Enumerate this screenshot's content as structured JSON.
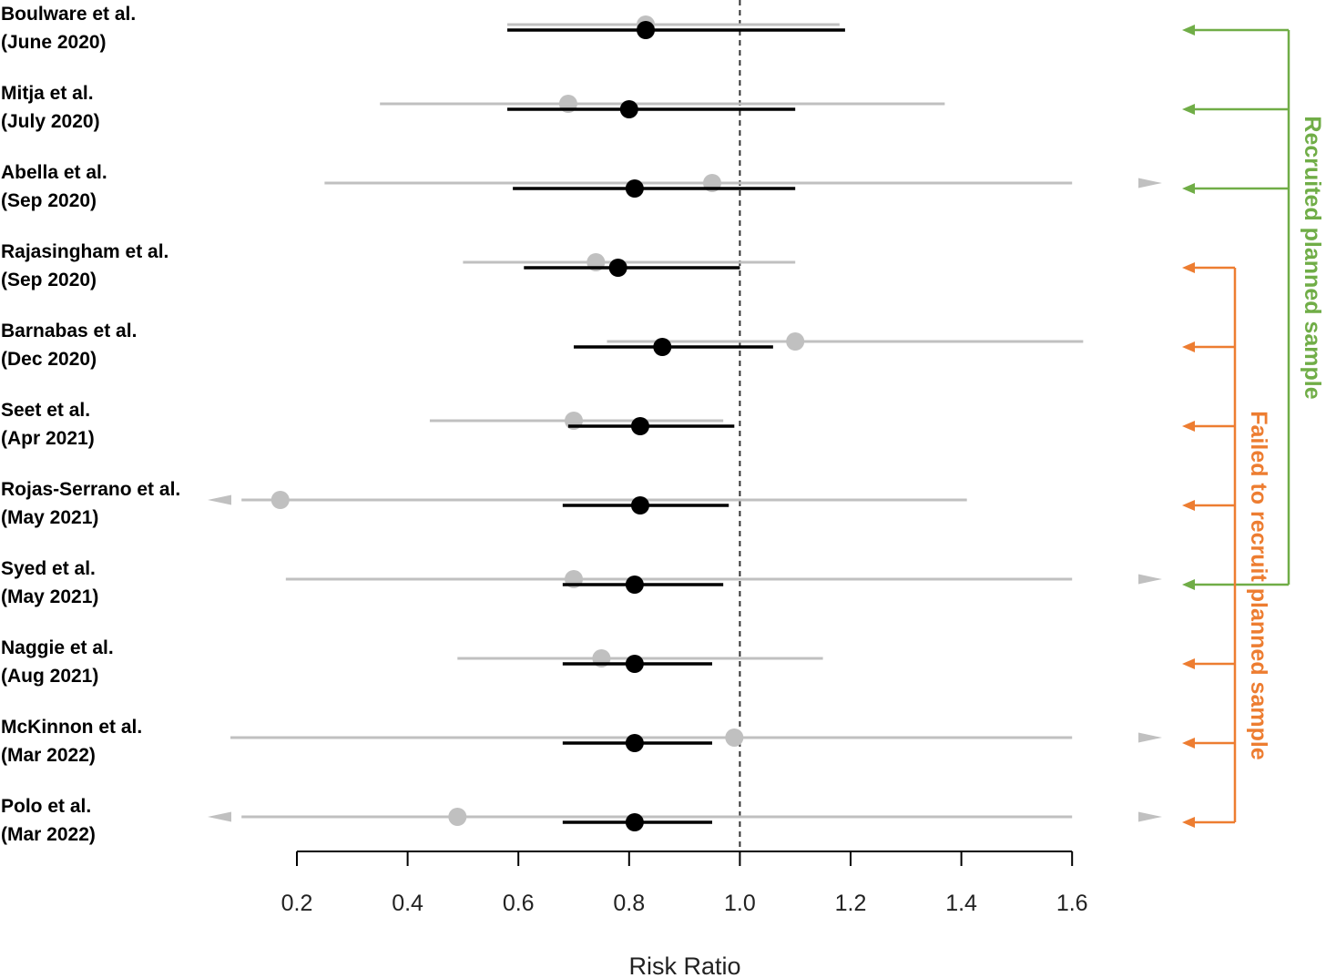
{
  "colors": {
    "posterior": "#000000",
    "trial": "#c0c0c0",
    "recruited": "#70ad47",
    "failed": "#ed7d31",
    "reference_line": "#333333"
  },
  "chart_data": {
    "type": "scatter",
    "xlabel": "Risk Ratio",
    "xlim": [
      0.2,
      1.6
    ],
    "xticks": [
      0.2,
      0.4,
      0.6,
      0.8,
      1.0,
      1.2,
      1.4,
      1.6
    ],
    "xtick_labels": [
      "0.2",
      "0.4",
      "0.6",
      "0.8",
      "1.0",
      "1.2",
      "1.4",
      "1.6"
    ],
    "reference_line": 1.0,
    "studies": [
      {
        "name": "Boulware et al.",
        "date": "(June 2020)",
        "group": "recruited",
        "trial": {
          "est": 0.83,
          "lo": 0.58,
          "hi": 1.18,
          "arrow_lo": false,
          "arrow_hi": false
        },
        "posterior": {
          "est": 0.83,
          "lo": 0.58,
          "hi": 1.19
        }
      },
      {
        "name": "Mitja et al.",
        "date": "(July 2020)",
        "group": "recruited",
        "trial": {
          "est": 0.69,
          "lo": 0.35,
          "hi": 1.37,
          "arrow_lo": false,
          "arrow_hi": false
        },
        "posterior": {
          "est": 0.8,
          "lo": 0.58,
          "hi": 1.1
        }
      },
      {
        "name": "Abella et al.",
        "date": "(Sep 2020)",
        "group": "recruited",
        "trial": {
          "est": 0.95,
          "lo": 0.25,
          "hi": 1.6,
          "arrow_lo": false,
          "arrow_hi": true
        },
        "posterior": {
          "est": 0.81,
          "lo": 0.59,
          "hi": 1.1
        }
      },
      {
        "name": "Rajasingham et al.",
        "date": "(Sep 2020)",
        "group": "failed",
        "trial": {
          "est": 0.74,
          "lo": 0.5,
          "hi": 1.1,
          "arrow_lo": false,
          "arrow_hi": false
        },
        "posterior": {
          "est": 0.78,
          "lo": 0.61,
          "hi": 1.0
        }
      },
      {
        "name": "Barnabas et al.",
        "date": "(Dec 2020)",
        "group": "failed",
        "trial": {
          "est": 1.1,
          "lo": 0.76,
          "hi": 1.62,
          "arrow_lo": false,
          "arrow_hi": false
        },
        "posterior": {
          "est": 0.86,
          "lo": 0.7,
          "hi": 1.06
        }
      },
      {
        "name": "Seet et al.",
        "date": "(Apr 2021)",
        "group": "failed",
        "trial": {
          "est": 0.7,
          "lo": 0.44,
          "hi": 0.97,
          "arrow_lo": false,
          "arrow_hi": false
        },
        "posterior": {
          "est": 0.82,
          "lo": 0.69,
          "hi": 0.99
        }
      },
      {
        "name": "Rojas-Serrano et al.",
        "date": "(May 2021)",
        "group": "failed",
        "trial": {
          "est": 0.17,
          "lo": 0.1,
          "hi": 1.41,
          "arrow_lo": true,
          "arrow_hi": false
        },
        "posterior": {
          "est": 0.82,
          "lo": 0.68,
          "hi": 0.98
        }
      },
      {
        "name": "Syed et al.",
        "date": "(May 2021)",
        "group": "recruited",
        "trial": {
          "est": 0.7,
          "lo": 0.18,
          "hi": 1.6,
          "arrow_lo": false,
          "arrow_hi": true
        },
        "posterior": {
          "est": 0.81,
          "lo": 0.68,
          "hi": 0.97
        }
      },
      {
        "name": "Naggie et al.",
        "date": "(Aug 2021)",
        "group": "failed",
        "trial": {
          "est": 0.75,
          "lo": 0.49,
          "hi": 1.15,
          "arrow_lo": false,
          "arrow_hi": false
        },
        "posterior": {
          "est": 0.81,
          "lo": 0.68,
          "hi": 0.95
        }
      },
      {
        "name": "McKinnon et al.",
        "date": "(Mar 2022)",
        "group": "failed",
        "trial": {
          "est": 0.99,
          "lo": 0.08,
          "hi": 1.6,
          "arrow_lo": false,
          "arrow_hi": true
        },
        "posterior": {
          "est": 0.81,
          "lo": 0.68,
          "hi": 0.95
        }
      },
      {
        "name": "Polo et al.",
        "date": "(Mar 2022)",
        "group": "failed",
        "trial": {
          "est": 0.49,
          "lo": 0.1,
          "hi": 1.6,
          "arrow_lo": true,
          "arrow_hi": true
        },
        "posterior": {
          "est": 0.81,
          "lo": 0.68,
          "hi": 0.95
        }
      }
    ]
  },
  "brackets": {
    "recruited_label": "Recruited planned sample",
    "failed_label": "Failed to recruit planned sample"
  }
}
